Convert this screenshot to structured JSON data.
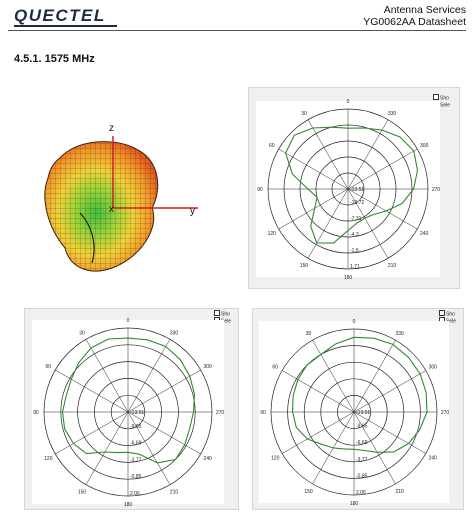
{
  "header": {
    "logo_text": "QUECTEL",
    "doc_title_line1": "Antenna  Services",
    "doc_title_line2": "YG0062AA  Datasheet"
  },
  "section": {
    "title": "4.5.1.    1575 MHz"
  },
  "pattern_3d": {
    "axis_z": "z",
    "axis_y": "y",
    "axis_x": "x"
  },
  "polar_common": {
    "angle_labels": [
      "0",
      "30",
      "60",
      "90",
      "120",
      "150",
      "180",
      "210",
      "240",
      "270",
      "300",
      "330"
    ],
    "checkbox_1": "Sho",
    "checkbox_2": "Sele",
    "line_color": "#2e8b2e"
  },
  "polar_plots": [
    {
      "radial_labels": [
        "-13.51",
        "-10.72",
        "-7.31",
        "-4.3",
        "-1.5",
        "1.71"
      ],
      "pattern": [
        0.76,
        0.8,
        0.88,
        0.95,
        0.9,
        0.72,
        0.5,
        0.4,
        0.48,
        0.66,
        0.78,
        0.7,
        0.52,
        0.44,
        0.42,
        0.45,
        0.55,
        0.7,
        0.82,
        0.9,
        0.95,
        0.92,
        0.85,
        0.79
      ]
    },
    {
      "radial_labels": [
        "-13.51",
        "-9.65",
        "-6.69",
        "-3.77",
        "-0.85",
        "2.06"
      ],
      "pattern": [
        0.88,
        0.9,
        0.88,
        0.83,
        0.78,
        0.76,
        0.78,
        0.78,
        0.75,
        0.7,
        0.55,
        0.5,
        0.48,
        0.52,
        0.7,
        0.8,
        0.78,
        0.76,
        0.78,
        0.82,
        0.85,
        0.88,
        0.9,
        0.89
      ]
    },
    {
      "radial_labels": [
        "-13.51",
        "-9.65",
        "-6.69",
        "-3.77",
        "-0.85",
        "2.06"
      ],
      "pattern": [
        0.9,
        0.85,
        0.8,
        0.8,
        0.78,
        0.76,
        0.74,
        0.72,
        0.65,
        0.55,
        0.5,
        0.46,
        0.45,
        0.48,
        0.56,
        0.68,
        0.76,
        0.82,
        0.88,
        0.9,
        0.92,
        0.93,
        0.94,
        0.92
      ]
    }
  ]
}
